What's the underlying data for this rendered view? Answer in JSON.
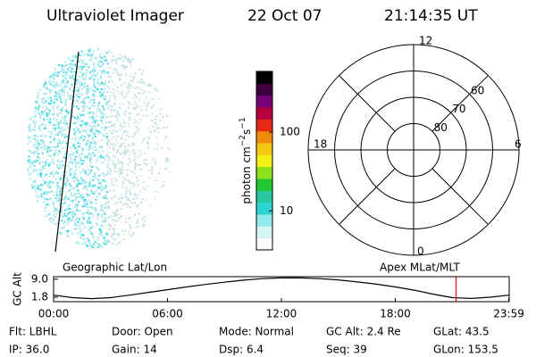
{
  "header": {
    "instrument": "Ultraviolet Imager",
    "date": "22 Oct 07",
    "time": "21:14:35 UT"
  },
  "colorbar": {
    "label": {
      "base": "photon cm",
      "exp1": "−2",
      "mid": "s",
      "exp2": "−1"
    },
    "log": true,
    "clim": [
      3.2,
      590
    ],
    "ticks": [
      10,
      100
    ],
    "colors": [
      "#fbfbfb",
      "#d6f4f4",
      "#8feaea",
      "#2ed3d3",
      "#28c8a0",
      "#22c832",
      "#8ce01e",
      "#f0f014",
      "#f5c814",
      "#f08c0a",
      "#e62814",
      "#b4003c",
      "#780078",
      "#3c003c",
      "#000000"
    ]
  },
  "dial": {
    "mlt_labels": {
      "top": "12",
      "left": "18",
      "right": "6",
      "bottom": "0"
    },
    "ring_labels": [
      80,
      70,
      60
    ],
    "lat_limit": 50
  },
  "chart_data": {
    "type": "line",
    "ylabel": "GC Alt",
    "left_label": "Geographic Lat/Lon",
    "right_label": "Apex MLat/MLT",
    "x": [
      0,
      1,
      2,
      3,
      4,
      5,
      6,
      7,
      8,
      9,
      10,
      11,
      12,
      13,
      14,
      15,
      16,
      17,
      18,
      19,
      20,
      21,
      22,
      23,
      23.98
    ],
    "y": [
      2.6,
      1.6,
      1.2,
      1.6,
      2.6,
      3.7,
      4.8,
      5.9,
      6.9,
      7.8,
      8.6,
      9.2,
      9.5,
      9.5,
      9.2,
      8.7,
      7.9,
      7.0,
      5.9,
      4.6,
      3.0,
      1.6,
      1.3,
      1.8,
      2.6
    ],
    "color": "#000000",
    "marker_x": 21.2,
    "marker_color": "#e00000",
    "xlim": [
      0,
      24
    ],
    "ylim": [
      0,
      10
    ],
    "xticks": [
      {
        "value": 0,
        "label": "00:00"
      },
      {
        "value": 6,
        "label": "06:00"
      },
      {
        "value": 12,
        "label": "12:00"
      },
      {
        "value": 18,
        "label": "18:00"
      },
      {
        "value": 23.98,
        "label": "23:59"
      }
    ],
    "yticks": [
      {
        "value": 1.8,
        "label": "1.8"
      },
      {
        "value": 9,
        "label": "9.0"
      }
    ]
  },
  "footer": {
    "rows": [
      [
        "Flt: LBHL",
        "Door: Open",
        "Mode: Normal",
        "GC Alt: 2.4 Re",
        "GLat: 43.5"
      ],
      [
        "IP: 36.0",
        "Gain: 14",
        "Dsp: 6.4",
        "Seq: 39",
        "GLon: 153.5"
      ]
    ]
  }
}
